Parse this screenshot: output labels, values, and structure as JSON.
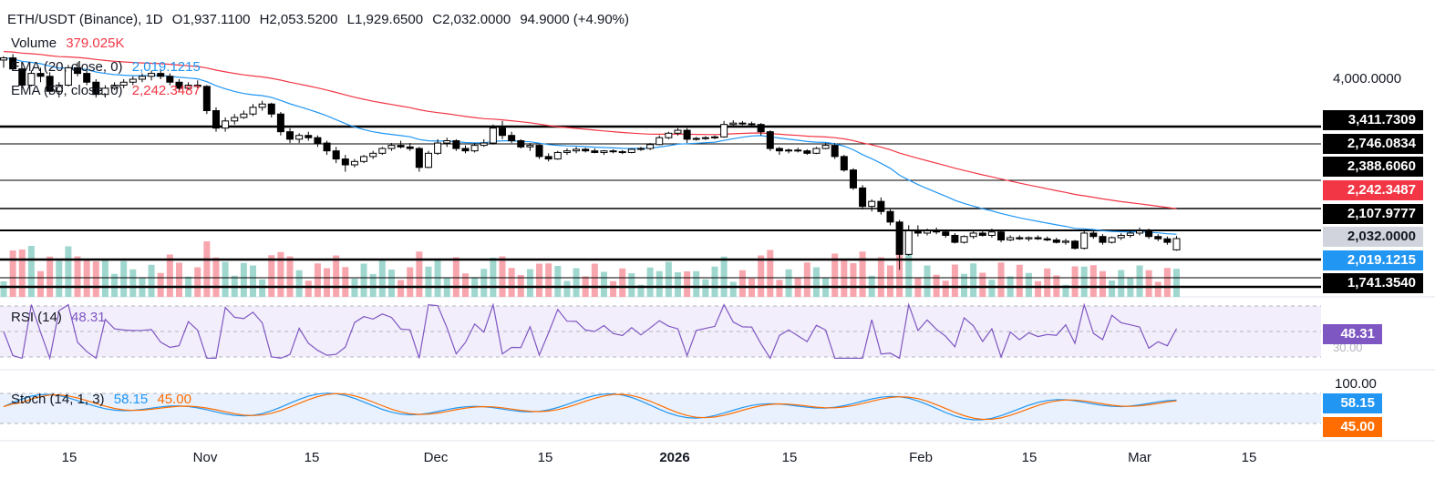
{
  "header": {
    "symbol": "ETH/USDT (Binance), 1D",
    "open": "O1,937.1100",
    "high": "H2,053.5200",
    "low": "L1,929.6500",
    "close": "C2,032.0000",
    "change": "94.9000 (+4.90%)"
  },
  "legends": {
    "volume_label": "Volume",
    "volume_value": "379.025K",
    "ema20_label": "EMA (20, close, 0)",
    "ema20_value": "2,019.1215",
    "ema50_label": "EMA (50, close, 0)",
    "ema50_value": "2,242.3487",
    "rsi_label": "RSI (14)",
    "rsi_value": "48.31",
    "stoch_label": "Stoch (14, 1, 3)",
    "stoch_k": "58.15",
    "stoch_d": "45.00"
  },
  "price_axis": {
    "top_label": "4,000.0000",
    "levels": [
      {
        "value": "3,411.7309",
        "color": "#000000"
      },
      {
        "value": "2,746.0834",
        "color": "#000000"
      },
      {
        "value": "2,388.6060",
        "color": "#000000"
      },
      {
        "value": "2,242.3487",
        "color": "#f23645"
      },
      {
        "value": "2,107.9777",
        "color": "#000000"
      },
      {
        "value": "2,032.0000",
        "color": "#d1d4dc"
      },
      {
        "value": "2,019.1215",
        "color": "#2196f3"
      },
      {
        "value": "1,741.3540",
        "color": "#000000"
      }
    ]
  },
  "rsi_axis": {
    "value": "48.31",
    "sub": "30.00"
  },
  "stoch_axis": {
    "top": "100.00",
    "k": "58.15",
    "d": "45.00"
  },
  "x_axis": [
    "15",
    "Nov",
    "15",
    "Dec",
    "15",
    "2026",
    "15",
    "Feb",
    "15",
    "Mar",
    "15"
  ],
  "chart_data": {
    "type": "candlestick",
    "title": "ETH/USDT (Binance), 1D",
    "price_range": [
      1741,
      4000
    ],
    "candles": [
      [
        4340,
        4410,
        4200,
        4380
      ],
      [
        4380,
        4450,
        4150,
        4180
      ],
      [
        4180,
        4200,
        3850,
        3900
      ],
      [
        3900,
        4150,
        3880,
        4100
      ],
      [
        4100,
        4200,
        3950,
        4050
      ],
      [
        4050,
        4120,
        3750,
        3800
      ],
      [
        3800,
        3950,
        3700,
        3900
      ],
      [
        3900,
        4250,
        3880,
        4200
      ],
      [
        4200,
        4300,
        4050,
        4100
      ],
      [
        4100,
        4150,
        3900,
        3950
      ],
      [
        3950,
        4000,
        3700,
        3750
      ],
      [
        3750,
        3900,
        3700,
        3850
      ],
      [
        3850,
        3950,
        3820,
        3900
      ],
      [
        3900,
        4000,
        3850,
        3950
      ],
      [
        3950,
        4050,
        3900,
        4000
      ],
      [
        4000,
        4100,
        3950,
        4050
      ],
      [
        4050,
        4150,
        3980,
        4100
      ],
      [
        4100,
        4180,
        4000,
        4050
      ],
      [
        4050,
        4100,
        3900,
        3950
      ],
      [
        3950,
        4000,
        3800,
        3850
      ],
      [
        3850,
        3950,
        3820,
        3900
      ],
      [
        3900,
        3980,
        3850,
        3880
      ],
      [
        3880,
        3900,
        3450,
        3500
      ],
      [
        3500,
        3550,
        3200,
        3250
      ],
      [
        3250,
        3400,
        3200,
        3350
      ],
      [
        3350,
        3450,
        3300,
        3400
      ],
      [
        3400,
        3500,
        3380,
        3450
      ],
      [
        3450,
        3600,
        3420,
        3550
      ],
      [
        3550,
        3650,
        3500,
        3600
      ],
      [
        3600,
        3620,
        3400,
        3450
      ],
      [
        3450,
        3480,
        3150,
        3200
      ],
      [
        3200,
        3250,
        3050,
        3100
      ],
      [
        3100,
        3180,
        3050,
        3150
      ],
      [
        3150,
        3200,
        3080,
        3120
      ],
      [
        3120,
        3150,
        3000,
        3050
      ],
      [
        3050,
        3080,
        2900,
        2950
      ],
      [
        2950,
        3000,
        2800,
        2850
      ],
      [
        2850,
        2900,
        2700,
        2780
      ],
      [
        2780,
        2850,
        2750,
        2820
      ],
      [
        2820,
        2900,
        2800,
        2880
      ],
      [
        2880,
        2950,
        2850,
        2920
      ],
      [
        2920,
        3000,
        2900,
        2980
      ],
      [
        2980,
        3050,
        2950,
        3020
      ],
      [
        3020,
        3080,
        2980,
        3000
      ],
      [
        3000,
        3050,
        2950,
        2980
      ],
      [
        2980,
        3000,
        2700,
        2750
      ],
      [
        2750,
        2950,
        2740,
        2920
      ],
      [
        2920,
        3100,
        2900,
        3050
      ],
      [
        3050,
        3120,
        3000,
        3080
      ],
      [
        3080,
        3100,
        2950,
        2980
      ],
      [
        2980,
        3020,
        2920,
        2950
      ],
      [
        2950,
        3050,
        2930,
        3020
      ],
      [
        3020,
        3100,
        3000,
        3050
      ],
      [
        3050,
        3300,
        3030,
        3250
      ],
      [
        3250,
        3350,
        3100,
        3150
      ],
      [
        3150,
        3200,
        3050,
        3080
      ],
      [
        3080,
        3100,
        2980,
        3000
      ],
      [
        3000,
        3050,
        2950,
        3020
      ],
      [
        3020,
        3030,
        2850,
        2880
      ],
      [
        2880,
        2920,
        2820,
        2850
      ],
      [
        2850,
        2950,
        2840,
        2930
      ],
      [
        2930,
        2980,
        2900,
        2950
      ],
      [
        2950,
        3000,
        2920,
        2970
      ],
      [
        2970,
        2990,
        2930,
        2950
      ],
      [
        2950,
        2980,
        2920,
        2930
      ],
      [
        2930,
        2960,
        2900,
        2950
      ],
      [
        2950,
        2970,
        2920,
        2940
      ],
      [
        2940,
        2960,
        2910,
        2930
      ],
      [
        2930,
        2980,
        2920,
        2970
      ],
      [
        2970,
        3000,
        2950,
        2980
      ],
      [
        2980,
        3050,
        2960,
        3030
      ],
      [
        3030,
        3150,
        3020,
        3120
      ],
      [
        3120,
        3200,
        3100,
        3180
      ],
      [
        3180,
        3250,
        3150,
        3220
      ],
      [
        3220,
        3250,
        3050,
        3100
      ],
      [
        3100,
        3130,
        3080,
        3110
      ],
      [
        3110,
        3140,
        3090,
        3120
      ],
      [
        3120,
        3150,
        3100,
        3130
      ],
      [
        3130,
        3350,
        3120,
        3300
      ],
      [
        3300,
        3360,
        3280,
        3320
      ],
      [
        3320,
        3350,
        3290,
        3310
      ],
      [
        3310,
        3340,
        3280,
        3300
      ],
      [
        3300,
        3320,
        3150,
        3200
      ],
      [
        3200,
        3220,
        2950,
        2980
      ],
      [
        2980,
        3000,
        2900,
        2950
      ],
      [
        2950,
        2980,
        2920,
        2960
      ],
      [
        2960,
        2990,
        2930,
        2950
      ],
      [
        2950,
        2970,
        2900,
        2920
      ],
      [
        2920,
        3000,
        2910,
        2980
      ],
      [
        2980,
        3050,
        2970,
        3020
      ],
      [
        3020,
        3050,
        2850,
        2880
      ],
      [
        2880,
        2900,
        2700,
        2720
      ],
      [
        2720,
        2740,
        2500,
        2520
      ],
      [
        2520,
        2550,
        2300,
        2330
      ],
      [
        2330,
        2400,
        2280,
        2380
      ],
      [
        2380,
        2420,
        2250,
        2280
      ],
      [
        2280,
        2300,
        2150,
        2180
      ],
      [
        2180,
        2200,
        1780,
        1900
      ],
      [
        1900,
        2150,
        1890,
        2100
      ],
      [
        2100,
        2150,
        2050,
        2080
      ],
      [
        2080,
        2120,
        2060,
        2100
      ],
      [
        2100,
        2130,
        2070,
        2090
      ],
      [
        2090,
        2110,
        2040,
        2060
      ],
      [
        2060,
        2080,
        1990,
        2000
      ],
      [
        2000,
        2060,
        1990,
        2050
      ],
      [
        2050,
        2100,
        2030,
        2080
      ],
      [
        2080,
        2100,
        2050,
        2060
      ],
      [
        2060,
        2120,
        2040,
        2090
      ],
      [
        2090,
        2110,
        2000,
        2020
      ],
      [
        2020,
        2060,
        2010,
        2040
      ],
      [
        2040,
        2060,
        2020,
        2030
      ],
      [
        2030,
        2050,
        2010,
        2040
      ],
      [
        2040,
        2060,
        2020,
        2030
      ],
      [
        2030,
        2050,
        2010,
        2020
      ],
      [
        2020,
        2040,
        1990,
        2000
      ],
      [
        2000,
        2030,
        1980,
        2010
      ],
      [
        2010,
        2020,
        1940,
        1950
      ],
      [
        1950,
        2100,
        1940,
        2080
      ],
      [
        2080,
        2100,
        2030,
        2050
      ],
      [
        2050,
        2070,
        1980,
        2000
      ],
      [
        2000,
        2050,
        1990,
        2040
      ],
      [
        2040,
        2080,
        2020,
        2060
      ],
      [
        2060,
        2110,
        2040,
        2080
      ],
      [
        2080,
        2130,
        2060,
        2100
      ],
      [
        2100,
        2120,
        2030,
        2050
      ],
      [
        2050,
        2070,
        2010,
        2030
      ],
      [
        2030,
        2050,
        1980,
        2000
      ],
      [
        1937,
        2054,
        1930,
        2032
      ]
    ],
    "ema20_last": 2019.1215,
    "ema50_last": 2242.3487,
    "rsi_last": 48.31,
    "stoch_k_last": 58.15,
    "stoch_d_last": 45.0,
    "horizontal_levels": [
      3411.7309,
      2746.0834,
      2388.606,
      2107.9777,
      1741.354
    ]
  }
}
